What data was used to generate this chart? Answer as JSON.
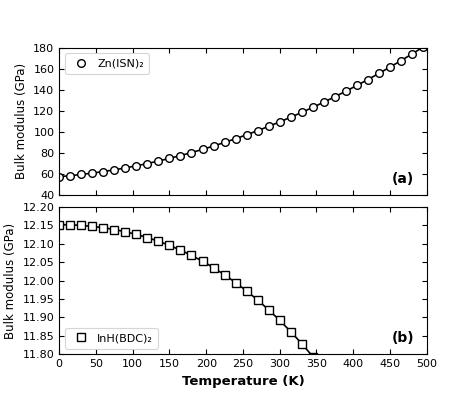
{
  "title_a": "(a)",
  "title_b": "(b)",
  "xlabel": "Temperature (K)",
  "ylabel": "Bulk modulus (GPa)",
  "panel_a": {
    "ylim": [
      40,
      180
    ],
    "yticks": [
      40,
      60,
      80,
      100,
      120,
      140,
      160,
      180
    ],
    "legend_label": "Zn(ISN)₂",
    "marker": "o",
    "color": "black",
    "T_step": 15,
    "poly": [
      57.5,
      0.058,
      0.000385
    ]
  },
  "panel_b": {
    "ylim": [
      11.8,
      12.2
    ],
    "yticks": [
      11.8,
      11.85,
      11.9,
      11.95,
      12.0,
      12.05,
      12.1,
      12.15,
      12.2
    ],
    "legend_label": "InH(BDC)₂",
    "marker": "s",
    "color": "black",
    "T_step": 15,
    "B0": 12.152,
    "a": 5e-07,
    "b": 0.00025
  },
  "xlim": [
    0,
    500
  ],
  "xticks": [
    0,
    50,
    100,
    150,
    200,
    250,
    300,
    350,
    400,
    450,
    500
  ],
  "figure_bg": "#ffffff",
  "marker_size": 5.5,
  "line_width": 1.2
}
